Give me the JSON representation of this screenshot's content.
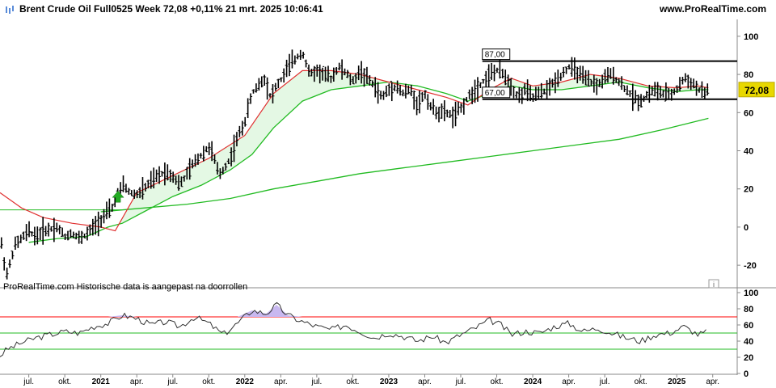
{
  "header": {
    "title": "Brent Crude Oil Full0525 Week 72,08 +0,11% 21 mrt. 2025 10:06:41",
    "site": "www.ProRealTime.com"
  },
  "footer_note": "ProRealTime.com Historische data is aangepast na doorrollen",
  "info_icon": "i",
  "price_label": "72,08",
  "colors": {
    "price_bar": "#000000",
    "ma_short": "#e03030",
    "ma_mid": "#22bb22",
    "ma_long": "#22bb22",
    "ma_fill": "#d8f5d8",
    "channel": "#000000",
    "signal_arrow": "#22aa22",
    "rsi_line": "#333333",
    "rsi_over": "#ff0000",
    "rsi_mid": "#22bb22",
    "rsi_under": "#22bb22",
    "rsi_fill": "#c8b8f0",
    "price_label_bg": "#e8d800",
    "grid": "#dddddd"
  },
  "chart_data": [
    {
      "type": "ohlc",
      "title": "Brent Crude Oil Full0525 Week",
      "last_value": 72.08,
      "change_pct": 0.11,
      "ylim": [
        -28,
        108
      ],
      "y_ticks": [
        -20,
        0,
        20,
        40,
        60,
        80,
        100
      ],
      "x_tick_labels": [
        "jul.",
        "okt.",
        "2021",
        "apr.",
        "jul.",
        "okt.",
        "2022",
        "apr.",
        "jul.",
        "okt.",
        "2023",
        "apr.",
        "jul.",
        "okt.",
        "2024",
        "apr.",
        "jul.",
        "okt.",
        "2025",
        "apr."
      ],
      "x_ticks_bold": [
        "2021",
        "2022",
        "2023",
        "2024",
        "2025"
      ],
      "price_path": [
        [
          2020.3,
          -3
        ],
        [
          2020.32,
          -15
        ],
        [
          2020.35,
          -25
        ],
        [
          2020.4,
          -10
        ],
        [
          2020.45,
          -6
        ],
        [
          2020.5,
          -2
        ],
        [
          2020.55,
          -5
        ],
        [
          2020.6,
          -2
        ],
        [
          2020.65,
          -1
        ],
        [
          2020.7,
          0
        ],
        [
          2020.75,
          -5
        ],
        [
          2020.8,
          -3
        ],
        [
          2020.85,
          -6
        ],
        [
          2020.9,
          -4
        ],
        [
          2020.95,
          0
        ],
        [
          2021.0,
          4
        ],
        [
          2021.05,
          8
        ],
        [
          2021.08,
          10
        ],
        [
          2021.12,
          18
        ],
        [
          2021.16,
          22
        ],
        [
          2021.2,
          18
        ],
        [
          2021.25,
          17
        ],
        [
          2021.3,
          20
        ],
        [
          2021.35,
          24
        ],
        [
          2021.4,
          27
        ],
        [
          2021.45,
          29
        ],
        [
          2021.5,
          27
        ],
        [
          2021.55,
          22
        ],
        [
          2021.6,
          28
        ],
        [
          2021.65,
          34
        ],
        [
          2021.7,
          38
        ],
        [
          2021.75,
          42
        ],
        [
          2021.78,
          38
        ],
        [
          2021.82,
          27
        ],
        [
          2021.85,
          30
        ],
        [
          2021.9,
          36
        ],
        [
          2021.95,
          47
        ],
        [
          2022.0,
          55
        ],
        [
          2022.05,
          70
        ],
        [
          2022.1,
          75
        ],
        [
          2022.14,
          78
        ],
        [
          2022.18,
          68
        ],
        [
          2022.22,
          74
        ],
        [
          2022.26,
          78
        ],
        [
          2022.3,
          84
        ],
        [
          2022.35,
          88
        ],
        [
          2022.4,
          92
        ],
        [
          2022.45,
          80
        ],
        [
          2022.5,
          82
        ],
        [
          2022.55,
          80
        ],
        [
          2022.6,
          78
        ],
        [
          2022.65,
          84
        ],
        [
          2022.7,
          81
        ],
        [
          2022.75,
          76
        ],
        [
          2022.8,
          82
        ],
        [
          2022.85,
          78
        ],
        [
          2022.9,
          74
        ],
        [
          2022.95,
          68
        ],
        [
          2023.0,
          72
        ],
        [
          2023.05,
          74
        ],
        [
          2023.1,
          70
        ],
        [
          2023.15,
          72
        ],
        [
          2023.2,
          64
        ],
        [
          2023.25,
          70
        ],
        [
          2023.3,
          62
        ],
        [
          2023.35,
          60
        ],
        [
          2023.4,
          60
        ],
        [
          2023.45,
          58
        ],
        [
          2023.5,
          62
        ],
        [
          2023.55,
          68
        ],
        [
          2023.6,
          72
        ],
        [
          2023.65,
          76
        ],
        [
          2023.7,
          80
        ],
        [
          2023.75,
          82
        ],
        [
          2023.8,
          80
        ],
        [
          2023.85,
          74
        ],
        [
          2023.9,
          68
        ],
        [
          2023.95,
          72
        ],
        [
          2024.0,
          68
        ],
        [
          2024.05,
          70
        ],
        [
          2024.1,
          72
        ],
        [
          2024.15,
          76
        ],
        [
          2024.2,
          80
        ],
        [
          2024.25,
          84
        ],
        [
          2024.3,
          82
        ],
        [
          2024.35,
          78
        ],
        [
          2024.4,
          76
        ],
        [
          2024.45,
          74
        ],
        [
          2024.5,
          78
        ],
        [
          2024.55,
          80
        ],
        [
          2024.6,
          76
        ],
        [
          2024.65,
          72
        ],
        [
          2024.7,
          68
        ],
        [
          2024.75,
          66
        ],
        [
          2024.8,
          70
        ],
        [
          2024.85,
          72
        ],
        [
          2024.9,
          70
        ],
        [
          2024.95,
          69
        ],
        [
          2025.0,
          72
        ],
        [
          2025.05,
          78
        ],
        [
          2025.1,
          76
        ],
        [
          2025.15,
          72
        ],
        [
          2025.2,
          70
        ],
        [
          2025.22,
          72.08
        ]
      ],
      "ma_short_path": [
        [
          2020.3,
          18
        ],
        [
          2020.45,
          10
        ],
        [
          2020.6,
          5
        ],
        [
          2020.8,
          2
        ],
        [
          2021.0,
          0
        ],
        [
          2021.1,
          -2
        ],
        [
          2021.25,
          18
        ],
        [
          2021.5,
          27
        ],
        [
          2021.75,
          36
        ],
        [
          2022.0,
          48
        ],
        [
          2022.2,
          70
        ],
        [
          2022.4,
          82
        ],
        [
          2022.6,
          82
        ],
        [
          2022.8,
          80
        ],
        [
          2023.0,
          76
        ],
        [
          2023.2,
          72
        ],
        [
          2023.4,
          68
        ],
        [
          2023.55,
          64
        ],
        [
          2023.7,
          72
        ],
        [
          2023.85,
          78
        ],
        [
          2024.0,
          74
        ],
        [
          2024.2,
          76
        ],
        [
          2024.4,
          80
        ],
        [
          2024.6,
          78
        ],
        [
          2024.8,
          74
        ],
        [
          2025.0,
          73
        ],
        [
          2025.15,
          74
        ],
        [
          2025.22,
          73
        ]
      ],
      "ma_mid_path": [
        [
          2020.5,
          -8
        ],
        [
          2020.7,
          -6
        ],
        [
          2020.9,
          -5
        ],
        [
          2021.05,
          0
        ],
        [
          2021.15,
          2
        ],
        [
          2021.3,
          8
        ],
        [
          2021.5,
          16
        ],
        [
          2021.7,
          22
        ],
        [
          2021.9,
          30
        ],
        [
          2022.05,
          38
        ],
        [
          2022.2,
          52
        ],
        [
          2022.4,
          66
        ],
        [
          2022.6,
          72
        ],
        [
          2022.8,
          74
        ],
        [
          2023.0,
          76
        ],
        [
          2023.2,
          74
        ],
        [
          2023.4,
          70
        ],
        [
          2023.55,
          66
        ],
        [
          2023.7,
          70
        ],
        [
          2023.85,
          74
        ],
        [
          2024.0,
          72
        ],
        [
          2024.2,
          72
        ],
        [
          2024.4,
          74
        ],
        [
          2024.6,
          76
        ],
        [
          2024.8,
          73
        ],
        [
          2025.0,
          71
        ],
        [
          2025.15,
          72
        ],
        [
          2025.22,
          72
        ]
      ],
      "ma_long_path": [
        [
          2021.0,
          8
        ],
        [
          2021.3,
          10
        ],
        [
          2021.6,
          12
        ],
        [
          2021.9,
          15
        ],
        [
          2022.2,
          20
        ],
        [
          2022.5,
          24
        ],
        [
          2022.8,
          28
        ],
        [
          2023.1,
          31
        ],
        [
          2023.4,
          34
        ],
        [
          2023.7,
          37
        ],
        [
          2024.0,
          40
        ],
        [
          2024.3,
          43
        ],
        [
          2024.6,
          46
        ],
        [
          2024.9,
          51
        ],
        [
          2025.22,
          57
        ]
      ],
      "channel_lines": [
        {
          "label": "87,00",
          "value": 87
        },
        {
          "label": "67,00",
          "value": 67
        }
      ],
      "channel_start_date": 2023.65,
      "level_line": {
        "value": 9,
        "start": 2020.3,
        "end": 2021.15
      },
      "signal_arrow": {
        "date": 2021.12,
        "value": 13,
        "direction": "up"
      }
    },
    {
      "type": "line",
      "title": "RSI",
      "ylim": [
        0,
        100
      ],
      "y_ticks": [
        0,
        20,
        40,
        60,
        80,
        100
      ],
      "levels": {
        "overbought": 70,
        "middle": 50,
        "oversold": 30
      },
      "series": [
        {
          "values": [
            [
              2020.3,
              22
            ],
            [
              2020.35,
              30
            ],
            [
              2020.45,
              38
            ],
            [
              2020.55,
              44
            ],
            [
              2020.65,
              48
            ],
            [
              2020.75,
              52
            ],
            [
              2020.85,
              50
            ],
            [
              2020.95,
              58
            ],
            [
              2021.05,
              62
            ],
            [
              2021.15,
              72
            ],
            [
              2021.25,
              68
            ],
            [
              2021.35,
              60
            ],
            [
              2021.45,
              64
            ],
            [
              2021.55,
              58
            ],
            [
              2021.65,
              70
            ],
            [
              2021.75,
              62
            ],
            [
              2021.85,
              48
            ],
            [
              2021.95,
              62
            ],
            [
              2022.05,
              78
            ],
            [
              2022.15,
              74
            ],
            [
              2022.22,
              85
            ],
            [
              2022.3,
              72
            ],
            [
              2022.4,
              64
            ],
            [
              2022.5,
              58
            ],
            [
              2022.6,
              54
            ],
            [
              2022.7,
              60
            ],
            [
              2022.8,
              52
            ],
            [
              2022.9,
              44
            ],
            [
              2023.0,
              50
            ],
            [
              2023.1,
              46
            ],
            [
              2023.2,
              40
            ],
            [
              2023.3,
              46
            ],
            [
              2023.4,
              38
            ],
            [
              2023.5,
              48
            ],
            [
              2023.6,
              56
            ],
            [
              2023.7,
              66
            ],
            [
              2023.78,
              60
            ],
            [
              2023.85,
              48
            ],
            [
              2023.95,
              52
            ],
            [
              2024.05,
              50
            ],
            [
              2024.15,
              58
            ],
            [
              2024.25,
              62
            ],
            [
              2024.35,
              52
            ],
            [
              2024.45,
              56
            ],
            [
              2024.55,
              50
            ],
            [
              2024.65,
              44
            ],
            [
              2024.75,
              40
            ],
            [
              2024.85,
              48
            ],
            [
              2024.95,
              50
            ],
            [
              2025.05,
              58
            ],
            [
              2025.15,
              48
            ],
            [
              2025.22,
              52
            ]
          ]
        }
      ]
    }
  ]
}
